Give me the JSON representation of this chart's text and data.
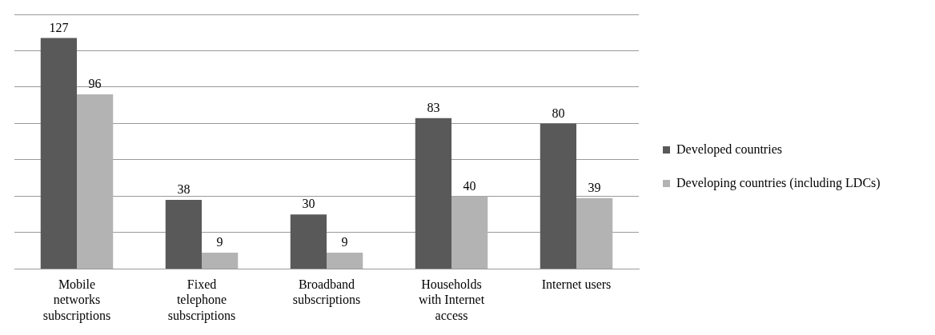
{
  "chart_data": {
    "type": "bar",
    "categories": [
      "Mobile networks subscriptions",
      "Fixed telephone subscriptions",
      "Broadband subscriptions",
      "Households with Internet access",
      "Internet users"
    ],
    "series": [
      {
        "name": "Developed countries",
        "color": "#595959",
        "values": [
          127,
          38,
          30,
          83,
          80
        ]
      },
      {
        "name": "Developing countries (including LDCs)",
        "color": "#b3b3b3",
        "values": [
          96,
          9,
          9,
          40,
          39
        ]
      }
    ],
    "ylim": [
      0,
      140
    ],
    "yticks": [
      {
        "value": 0,
        "label": null
      },
      {
        "value": 20,
        "label": null
      },
      {
        "value": 40,
        "label": null
      },
      {
        "value": 60,
        "label": null
      },
      {
        "value": 80,
        "label": null
      },
      {
        "value": 100,
        "label": null
      },
      {
        "value": 120,
        "label": null
      },
      {
        "value": 140,
        "label": null
      }
    ],
    "grid": "y",
    "legend": "right",
    "tick_labels": "x",
    "data_labels": true
  }
}
